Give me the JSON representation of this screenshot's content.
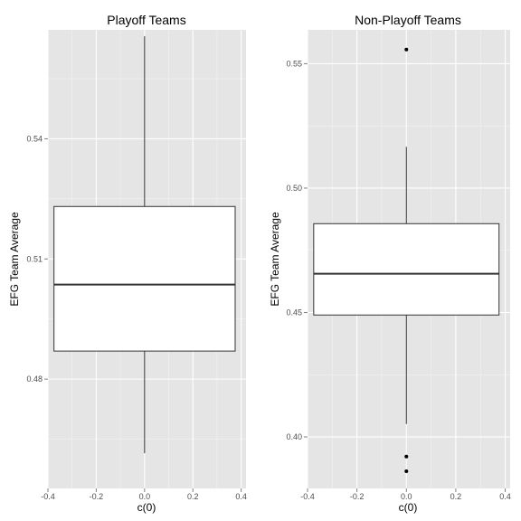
{
  "chart_data": [
    {
      "type": "box",
      "title": "Playoff Teams",
      "xlabel": "c(0)",
      "ylabel": "EFG Team Average",
      "x_ticks": [
        "-0.4",
        "-0.2",
        "0.0",
        "0.2",
        "0.4"
      ],
      "y_ticks": [
        "0.48",
        "0.51",
        "0.54"
      ],
      "xlim": [
        -0.4,
        0.42
      ],
      "ylim": [
        0.4527,
        0.5672
      ],
      "grid": true,
      "box": {
        "whisker_low": 0.4615,
        "q1": 0.487,
        "median": 0.5036,
        "q3": 0.5231,
        "whisker_high": 0.5656,
        "outliers": []
      }
    },
    {
      "type": "box",
      "title": "Non-Playoff Teams",
      "xlabel": "c(0)",
      "ylabel": "EFG Team Average",
      "x_ticks": [
        "-0.4",
        "-0.2",
        "0.0",
        "0.2",
        "0.4"
      ],
      "y_ticks": [
        "0.40",
        "0.45",
        "0.50",
        "0.55"
      ],
      "xlim": [
        -0.4,
        0.42
      ],
      "ylim": [
        0.3793,
        0.5636
      ],
      "grid": true,
      "box": {
        "whisker_low": 0.4052,
        "q1": 0.449,
        "median": 0.4656,
        "q3": 0.4857,
        "whisker_high": 0.5166,
        "outliers": [
          0.5557,
          0.3921,
          0.3862
        ]
      }
    }
  ]
}
